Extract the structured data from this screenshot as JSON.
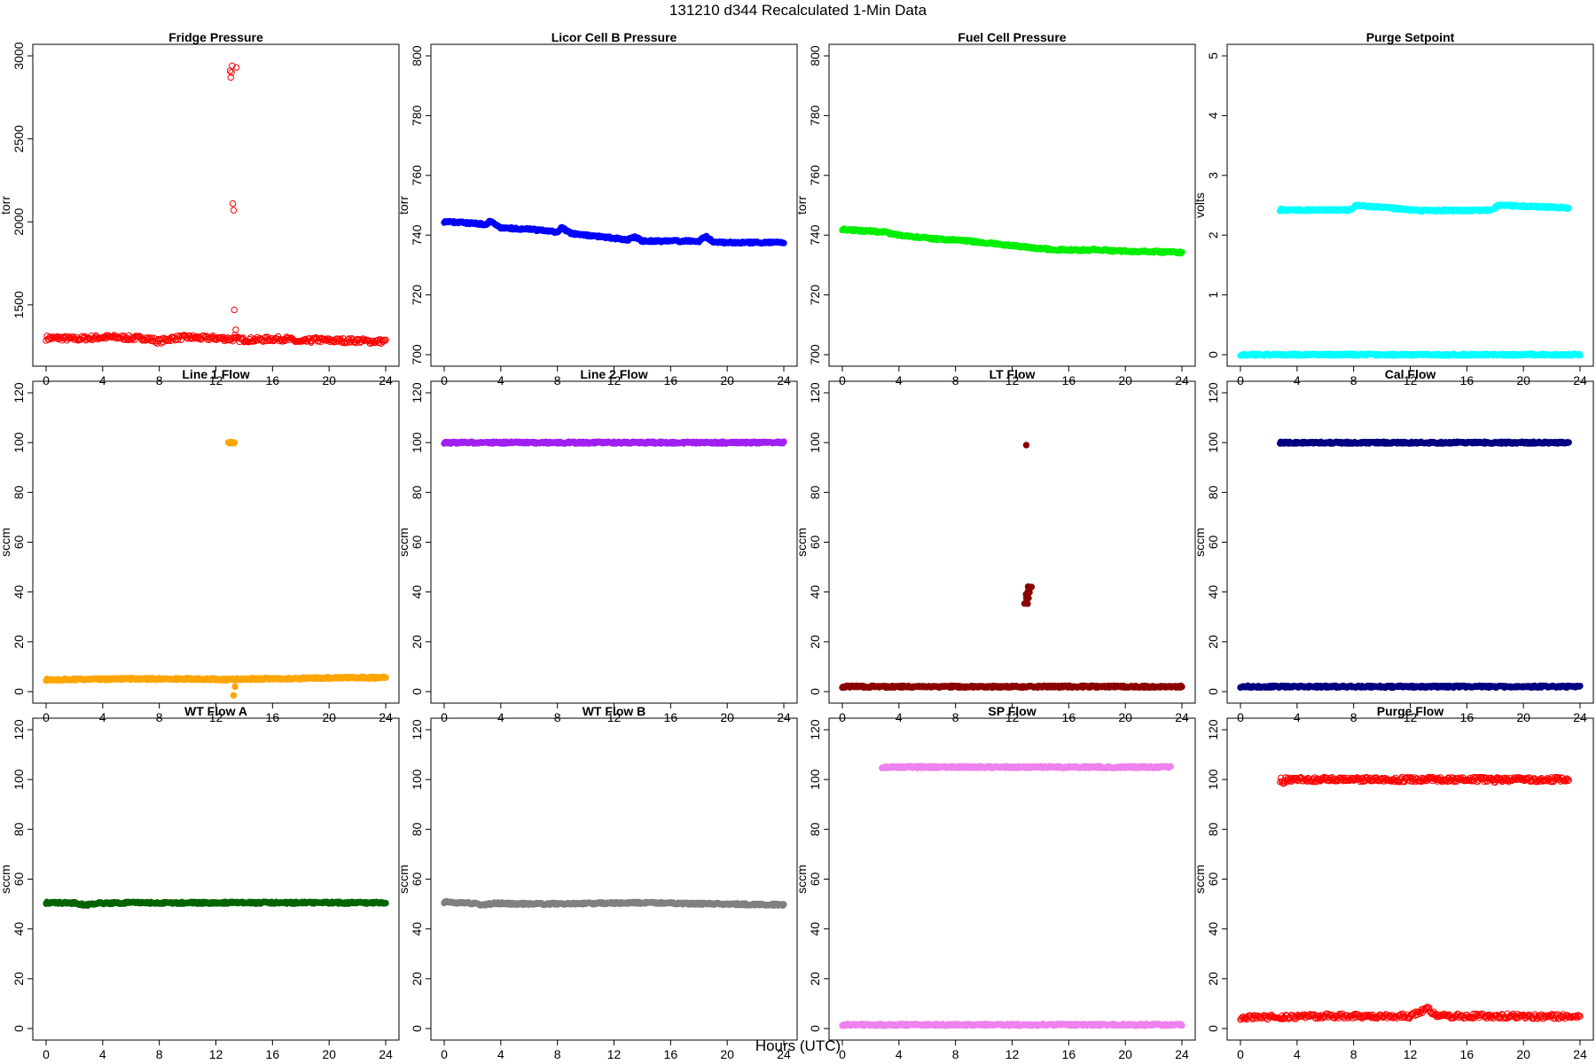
{
  "figure": {
    "title": "131210   d344   Recalculated 1-Min Data",
    "xlabel": "Hours (UTC)"
  },
  "chart_data": [
    {
      "type": "scatter",
      "title": "Fridge Pressure",
      "ylabel": "torr",
      "xlim": [
        0,
        24
      ],
      "xticks": [
        0,
        4,
        8,
        12,
        16,
        20,
        24
      ],
      "ylim": [
        1200,
        3000
      ],
      "yticks": [
        1500,
        2000,
        2500,
        3000
      ],
      "color": "#ff0000",
      "marker": "open",
      "series": [
        {
          "name": "baseline",
          "x": [
            0,
            1,
            2,
            3,
            4,
            5,
            6,
            7,
            8,
            9,
            10,
            11,
            12,
            13,
            14,
            15,
            16,
            17,
            18,
            19,
            20,
            21,
            22,
            23,
            24
          ],
          "y": [
            1300,
            1300,
            1295,
            1300,
            1305,
            1305,
            1300,
            1300,
            1280,
            1300,
            1305,
            1300,
            1300,
            1295,
            1290,
            1290,
            1295,
            1295,
            1275,
            1290,
            1285,
            1285,
            1285,
            1280,
            1280
          ]
        },
        {
          "name": "spike",
          "x": [
            13.0,
            13.05,
            13.1,
            13.15,
            13.2,
            13.25,
            13.3,
            13.35,
            13.4,
            13.45
          ],
          "y": [
            2910,
            2870,
            2900,
            2940,
            2110,
            2070,
            1470,
            1320,
            1350,
            2930
          ]
        }
      ]
    },
    {
      "type": "scatter",
      "title": "Licor Cell B Pressure",
      "ylabel": "torr",
      "xlim": [
        0,
        24
      ],
      "xticks": [
        0,
        4,
        8,
        12,
        16,
        20,
        24
      ],
      "ylim": [
        700,
        800
      ],
      "yticks": [
        700,
        720,
        740,
        760,
        780,
        800
      ],
      "color": "#0000ff",
      "marker": "filled",
      "series": [
        {
          "name": "data",
          "x": [
            0,
            1,
            2,
            3,
            3.2,
            4,
            5,
            6,
            7,
            8,
            8.3,
            9,
            10,
            11,
            12,
            13,
            13.5,
            14,
            15,
            16,
            17,
            18,
            18.5,
            19,
            20,
            21,
            22,
            23,
            24
          ],
          "y": [
            744.5,
            744.3,
            744,
            743.5,
            744.8,
            742.5,
            742.2,
            742,
            741.5,
            741,
            742.5,
            740.5,
            740,
            739.5,
            739,
            738.5,
            739.5,
            738,
            738,
            738,
            738,
            738,
            739.5,
            737.8,
            737.5,
            737.5,
            737.5,
            737.5,
            737.5
          ]
        }
      ]
    },
    {
      "type": "scatter",
      "title": "Fuel Cell Pressure",
      "ylabel": "torr",
      "xlim": [
        0,
        24
      ],
      "xticks": [
        0,
        4,
        8,
        12,
        16,
        20,
        24
      ],
      "ylim": [
        700,
        800
      ],
      "yticks": [
        700,
        720,
        740,
        760,
        780,
        800
      ],
      "color": "#00ee00",
      "marker": "filled",
      "series": [
        {
          "name": "data",
          "x": [
            0,
            1,
            2,
            3,
            4,
            5,
            6,
            7,
            8,
            9,
            10,
            11,
            12,
            13,
            14,
            15,
            16,
            17,
            18,
            19,
            20,
            21,
            22,
            23,
            24
          ],
          "y": [
            742,
            741.6,
            741.3,
            741,
            740,
            739.5,
            739,
            738.6,
            738.5,
            738,
            737.5,
            737,
            736.5,
            736,
            735.5,
            735.2,
            735,
            735,
            735.2,
            734.8,
            734.6,
            734.5,
            734.5,
            734.3,
            734.2
          ]
        }
      ]
    },
    {
      "type": "scatter",
      "title": "Purge Setpoint",
      "ylabel": "volts",
      "xlim": [
        0,
        24
      ],
      "xticks": [
        0,
        4,
        8,
        12,
        16,
        20,
        24
      ],
      "ylim": [
        0,
        5
      ],
      "yticks": [
        0,
        1,
        2,
        3,
        4,
        5
      ],
      "color": "#00ffff",
      "marker": "filled",
      "series": [
        {
          "name": "zero",
          "x": [
            0,
            1,
            2,
            3,
            4,
            5,
            6,
            7,
            8,
            9,
            10,
            11,
            12,
            13,
            14,
            15,
            16,
            17,
            18,
            19,
            20,
            21,
            22,
            23,
            24
          ],
          "y": [
            0,
            0,
            0,
            0,
            0,
            0,
            0,
            0,
            0,
            0,
            0,
            0,
            0,
            0,
            0,
            0,
            0,
            0,
            0,
            0,
            0,
            0,
            0,
            0,
            0
          ]
        },
        {
          "name": "purge events",
          "x": [
            2.8,
            3.0,
            3.2,
            7.8,
            8.0,
            8.2,
            12.8,
            13.0,
            13.2,
            17.8,
            18.0,
            18.2,
            22.8,
            23.0,
            23.2
          ],
          "y": [
            2.42,
            2.43,
            2.42,
            2.42,
            2.47,
            2.5,
            2.41,
            2.42,
            2.41,
            2.42,
            2.46,
            2.5,
            2.46,
            2.45,
            2.44
          ]
        }
      ]
    },
    {
      "type": "scatter",
      "title": "Line 1 Flow",
      "ylabel": "sccm",
      "xlim": [
        0,
        24
      ],
      "xticks": [
        0,
        4,
        8,
        12,
        16,
        20,
        24
      ],
      "ylim": [
        0,
        120
      ],
      "yticks": [
        0,
        20,
        40,
        60,
        80,
        100,
        120
      ],
      "color": "#ffa500",
      "marker": "filled",
      "series": [
        {
          "name": "baseline",
          "x": [
            0,
            2,
            4,
            6,
            8,
            10,
            12,
            13,
            14,
            16,
            18,
            20,
            22,
            24
          ],
          "y": [
            4.8,
            4.9,
            5,
            5.1,
            5.1,
            5.1,
            5,
            4.8,
            5,
            5.2,
            5.3,
            5.5,
            5.6,
            5.6
          ]
        },
        {
          "name": "spike",
          "x": [
            13.0,
            13.1,
            13.2,
            13.3
          ],
          "y": [
            100,
            100,
            100,
            100
          ]
        },
        {
          "name": "dip",
          "x": [
            13.25,
            13.35
          ],
          "y": [
            -1.5,
            2
          ]
        }
      ]
    },
    {
      "type": "scatter",
      "title": "Line 2 Flow",
      "ylabel": "sccm",
      "xlim": [
        0,
        24
      ],
      "xticks": [
        0,
        4,
        8,
        12,
        16,
        20,
        24
      ],
      "ylim": [
        0,
        120
      ],
      "yticks": [
        0,
        20,
        40,
        60,
        80,
        100,
        120
      ],
      "color": "#a020f0",
      "marker": "filled",
      "series": [
        {
          "name": "data",
          "x": [
            0,
            4,
            8,
            12,
            16,
            20,
            24
          ],
          "y": [
            100,
            100,
            100,
            100,
            100,
            100,
            100
          ]
        }
      ]
    },
    {
      "type": "scatter",
      "title": "LT Flow",
      "ylabel": "sccm",
      "xlim": [
        0,
        24
      ],
      "xticks": [
        0,
        4,
        8,
        12,
        16,
        20,
        24
      ],
      "ylim": [
        0,
        120
      ],
      "yticks": [
        0,
        20,
        40,
        60,
        80,
        100,
        120
      ],
      "color": "#8b0000",
      "marker": "filled",
      "series": [
        {
          "name": "baseline",
          "x": [
            0,
            4,
            8,
            12,
            16,
            20,
            24
          ],
          "y": [
            2,
            2,
            2,
            2,
            2,
            2,
            2
          ]
        },
        {
          "name": "spike",
          "x": [
            13.0,
            13.05,
            13.1,
            13.15,
            13.2,
            13.25
          ],
          "y": [
            35.5,
            37.5,
            39,
            40,
            41.5,
            42
          ]
        },
        {
          "name": "outlier",
          "x": [
            13.0
          ],
          "y": [
            99
          ]
        }
      ]
    },
    {
      "type": "scatter",
      "title": "Cal Flow",
      "ylabel": "sccm",
      "xlim": [
        0,
        24
      ],
      "xticks": [
        0,
        4,
        8,
        12,
        16,
        20,
        24
      ],
      "ylim": [
        0,
        120
      ],
      "yticks": [
        0,
        20,
        40,
        60,
        80,
        100,
        120
      ],
      "color": "#000080",
      "marker": "filled",
      "series": [
        {
          "name": "baseline",
          "x": [
            0,
            4,
            8,
            12,
            16,
            20,
            24
          ],
          "y": [
            2,
            2,
            2,
            2,
            2,
            2,
            2
          ]
        },
        {
          "name": "cal events",
          "x": [
            2.8,
            3.2,
            7.8,
            8.3,
            12.8,
            13.2,
            17.8,
            18.3,
            22.8,
            23.2
          ],
          "y": [
            100,
            100,
            100,
            100,
            100,
            100,
            100,
            100,
            100,
            100
          ]
        }
      ]
    },
    {
      "type": "scatter",
      "title": "WT Flow A",
      "ylabel": "sccm",
      "xlim": [
        0,
        24
      ],
      "xticks": [
        0,
        4,
        8,
        12,
        16,
        20,
        24
      ],
      "ylim": [
        0,
        120
      ],
      "yticks": [
        0,
        20,
        40,
        60,
        80,
        100,
        120
      ],
      "color": "#006400",
      "marker": "filled",
      "series": [
        {
          "name": "data",
          "x": [
            0,
            2,
            2.8,
            3.5,
            6,
            10,
            14,
            18,
            22,
            24
          ],
          "y": [
            50.5,
            50.5,
            49.5,
            50.3,
            50.5,
            50.5,
            50.5,
            50.5,
            50.5,
            50.5
          ]
        }
      ]
    },
    {
      "type": "scatter",
      "title": "WT Flow B",
      "ylabel": "sccm",
      "xlim": [
        0,
        24
      ],
      "xticks": [
        0,
        4,
        8,
        12,
        16,
        20,
        24
      ],
      "ylim": [
        0,
        120
      ],
      "yticks": [
        0,
        20,
        40,
        60,
        80,
        100,
        120
      ],
      "color": "#808080",
      "marker": "filled",
      "series": [
        {
          "name": "data",
          "x": [
            0,
            2,
            2.8,
            3.5,
            6,
            10,
            12,
            14,
            16,
            18,
            20,
            22,
            24
          ],
          "y": [
            50.8,
            50.3,
            49.5,
            50.3,
            50,
            50.2,
            50.4,
            50.5,
            50.3,
            50.1,
            50,
            49.8,
            49.7
          ]
        }
      ]
    },
    {
      "type": "scatter",
      "title": "SP Flow",
      "ylabel": "sccm",
      "xlim": [
        0,
        24
      ],
      "xticks": [
        0,
        4,
        8,
        12,
        16,
        20,
        24
      ],
      "ylim": [
        0,
        120
      ],
      "yticks": [
        0,
        20,
        40,
        60,
        80,
        100,
        120
      ],
      "color": "#ee82ee",
      "marker": "filled",
      "series": [
        {
          "name": "baseline",
          "x": [
            0,
            4,
            8,
            12,
            16,
            20,
            24
          ],
          "y": [
            1.5,
            1.5,
            1.5,
            1.5,
            1.5,
            1.5,
            1.5
          ]
        },
        {
          "name": "sp events",
          "x": [
            2.8,
            3.2,
            7.8,
            8.2,
            12.8,
            13.2,
            17.8,
            18.2,
            22.8,
            23.2
          ],
          "y": [
            105,
            105,
            105,
            105,
            105,
            105,
            105,
            105,
            105,
            105
          ]
        }
      ]
    },
    {
      "type": "scatter",
      "title": "Purge Flow",
      "ylabel": "sccm",
      "xlim": [
        0,
        24
      ],
      "xticks": [
        0,
        4,
        8,
        12,
        16,
        20,
        24
      ],
      "ylim": [
        0,
        120
      ],
      "yticks": [
        0,
        20,
        40,
        60,
        80,
        100,
        120
      ],
      "color": "#ff0000",
      "marker": "open",
      "series": [
        {
          "name": "baseline",
          "x": [
            0,
            2,
            4,
            6,
            8,
            10,
            12,
            13.2,
            14,
            16,
            18,
            20,
            22,
            24
          ],
          "y": [
            4.5,
            4.5,
            4.8,
            5,
            5,
            5,
            5,
            8,
            5,
            5,
            5,
            5,
            4.8,
            4.8
          ]
        },
        {
          "name": "purge events",
          "x": [
            2.8,
            3.0,
            3.2,
            7.8,
            8.0,
            8.2,
            12.8,
            13.0,
            13.2,
            17.8,
            18.0,
            18.2,
            22.8,
            23.0,
            23.2
          ],
          "y": [
            100,
            99,
            100,
            100,
            99.5,
            100,
            100,
            99.5,
            100,
            100,
            99.5,
            100,
            100,
            99.5,
            100
          ]
        }
      ]
    }
  ]
}
